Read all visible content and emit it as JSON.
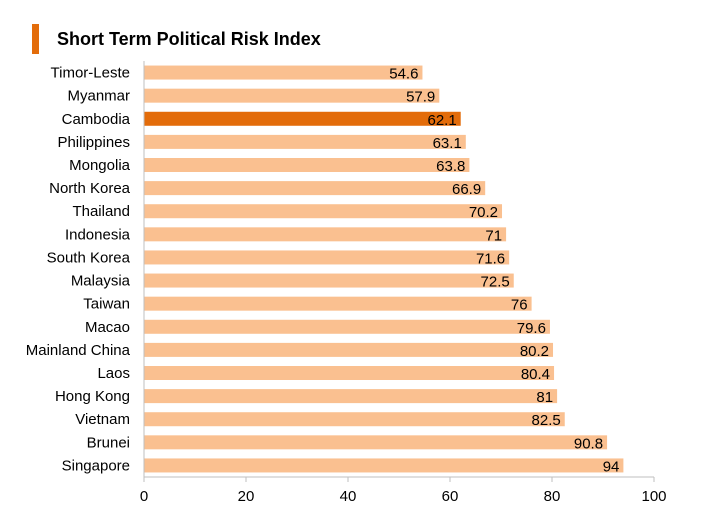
{
  "title": "Short Term Political Risk Index",
  "colors": {
    "accent": "#E36C0A",
    "bar": "#FAC090",
    "highlight_bar": "#E36C0A",
    "axis": "#BFBFBF"
  },
  "chart_data": {
    "type": "bar",
    "orientation": "horizontal",
    "title": "Short Term Political Risk Index",
    "xlabel": "",
    "ylabel": "",
    "xlim": [
      0,
      100
    ],
    "ticks": [
      0,
      20,
      40,
      60,
      80,
      100
    ],
    "grid": false,
    "highlight": "Cambodia",
    "categories": [
      "Timor-Leste",
      "Myanmar",
      "Cambodia",
      "Philippines",
      "Mongolia",
      "North Korea",
      "Thailand",
      "Indonesia",
      "South Korea",
      "Malaysia",
      "Taiwan",
      "Macao",
      "Mainland China",
      "Laos",
      "Hong Kong",
      "Vietnam",
      "Brunei",
      "Singapore"
    ],
    "values": [
      54.6,
      57.9,
      62.1,
      63.1,
      63.8,
      66.9,
      70.2,
      71,
      71.6,
      72.5,
      76,
      79.6,
      80.2,
      80.4,
      81,
      82.5,
      90.8,
      94
    ],
    "value_labels": [
      "54.6",
      "57.9",
      "62.1",
      "63.1",
      "63.8",
      "66.9",
      "70.2",
      "71",
      "71.6",
      "72.5",
      "76",
      "79.6",
      "80.2",
      "80.4",
      "81",
      "82.5",
      "90.8",
      "94"
    ],
    "tick_labels": [
      "0",
      "20",
      "40",
      "60",
      "80",
      "100"
    ]
  }
}
